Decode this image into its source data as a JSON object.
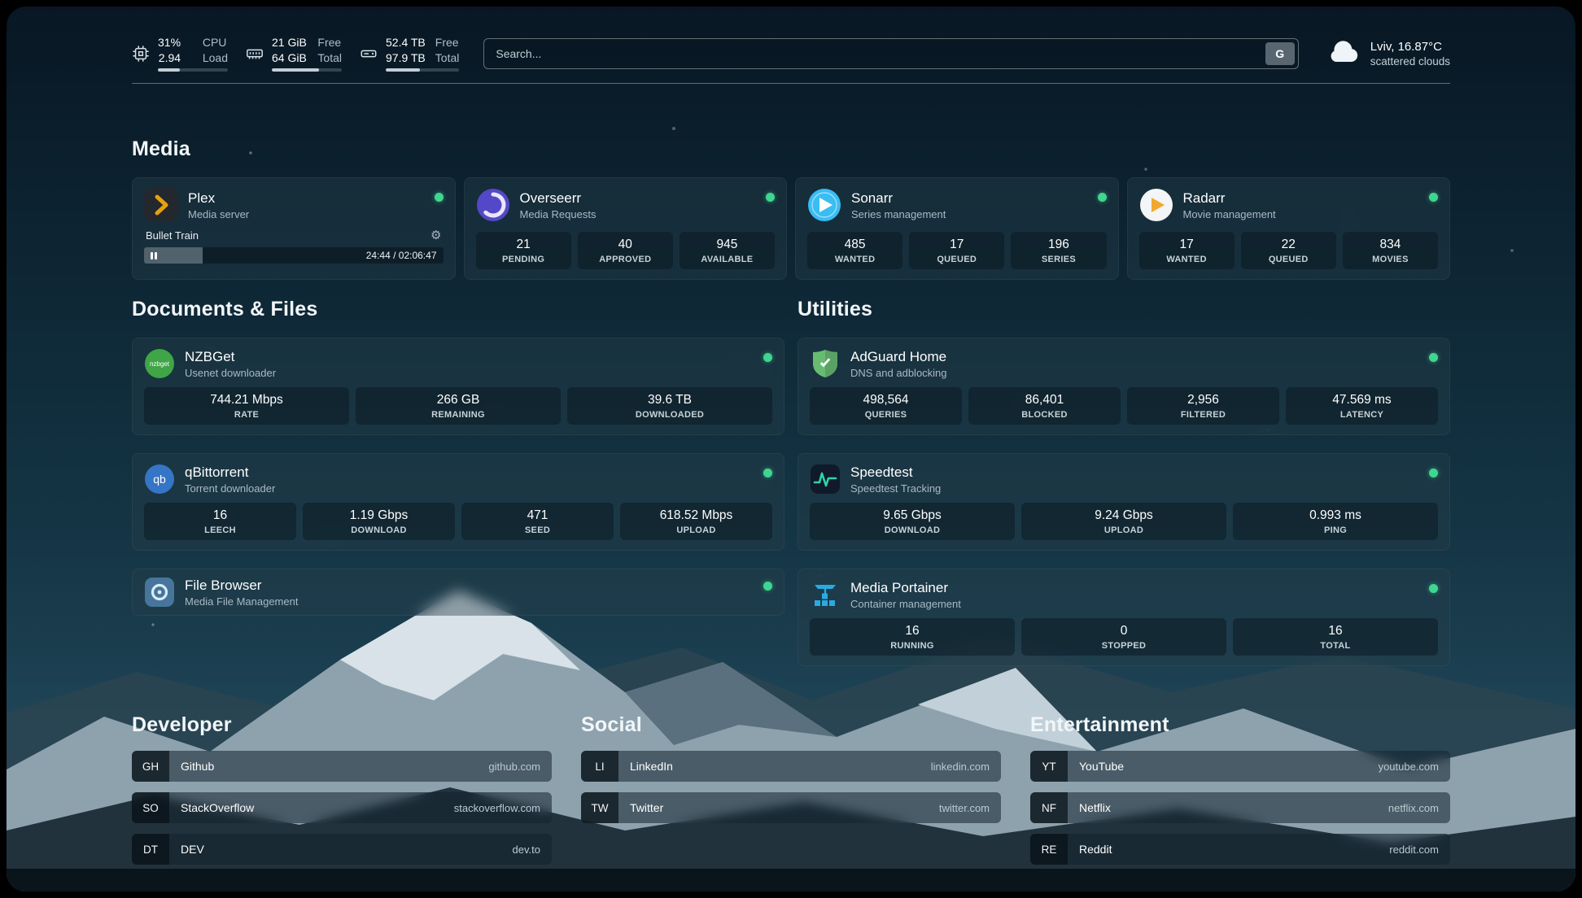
{
  "colors": {
    "status_online": "#3fd68f",
    "plex_accent": "#e5a00d",
    "progress_fill": "#c3ced6"
  },
  "header": {
    "metrics": [
      {
        "icon": "cpu-icon",
        "value_top": "31%",
        "value_bottom": "2.94",
        "label_top": "CPU",
        "label_bottom": "Load",
        "progress_percent": 31
      },
      {
        "icon": "memory-icon",
        "value_top": "21 GiB",
        "value_bottom": "64 GiB",
        "label_top": "Free",
        "label_bottom": "Total",
        "progress_percent": 67
      },
      {
        "icon": "disk-icon",
        "value_top": "52.4 TB",
        "value_bottom": "97.9 TB",
        "label_top": "Free",
        "label_bottom": "Total",
        "progress_percent": 46
      }
    ],
    "search": {
      "placeholder": "Search...",
      "provider_label": "G"
    },
    "weather": {
      "location": "Lviv, 16.87°C",
      "condition": "scattered clouds"
    }
  },
  "media": {
    "title": "Media",
    "plex": {
      "name": "Plex",
      "description": "Media server",
      "status": "online",
      "now_playing": "Bullet Train",
      "time": "24:44 / 02:06:47",
      "progress_percent": 19.5
    },
    "overseerr": {
      "name": "Overseerr",
      "description": "Media Requests",
      "status": "online",
      "stats": [
        {
          "value": "21",
          "label": "PENDING"
        },
        {
          "value": "40",
          "label": "APPROVED"
        },
        {
          "value": "945",
          "label": "AVAILABLE"
        }
      ]
    },
    "sonarr": {
      "name": "Sonarr",
      "description": "Series management",
      "status": "online",
      "stats": [
        {
          "value": "485",
          "label": "WANTED"
        },
        {
          "value": "17",
          "label": "QUEUED"
        },
        {
          "value": "196",
          "label": "SERIES"
        }
      ]
    },
    "radarr": {
      "name": "Radarr",
      "description": "Movie management",
      "status": "online",
      "stats": [
        {
          "value": "17",
          "label": "WANTED"
        },
        {
          "value": "22",
          "label": "QUEUED"
        },
        {
          "value": "834",
          "label": "MOVIES"
        }
      ]
    }
  },
  "documents": {
    "title": "Documents & Files",
    "nzbget": {
      "name": "NZBGet",
      "description": "Usenet downloader",
      "status": "online",
      "icon_text": "nzbget",
      "stats": [
        {
          "value": "744.21 Mbps",
          "label": "RATE"
        },
        {
          "value": "266 GB",
          "label": "REMAINING"
        },
        {
          "value": "39.6 TB",
          "label": "DOWNLOADED"
        }
      ]
    },
    "qbittorrent": {
      "name": "qBittorrent",
      "description": "Torrent downloader",
      "status": "online",
      "icon_text": "qb",
      "stats": [
        {
          "value": "16",
          "label": "LEECH"
        },
        {
          "value": "1.19 Gbps",
          "label": "DOWNLOAD"
        },
        {
          "value": "471",
          "label": "SEED"
        },
        {
          "value": "618.52 Mbps",
          "label": "UPLOAD"
        }
      ]
    },
    "filebrowser": {
      "name": "File Browser",
      "description": "Media File Management",
      "status": "online"
    }
  },
  "utilities": {
    "title": "Utilities",
    "adguard": {
      "name": "AdGuard Home",
      "description": "DNS and adblocking",
      "status": "online",
      "stats": [
        {
          "value": "498,564",
          "label": "QUERIES"
        },
        {
          "value": "86,401",
          "label": "BLOCKED"
        },
        {
          "value": "2,956",
          "label": "FILTERED"
        },
        {
          "value": "47.569 ms",
          "label": "LATENCY"
        }
      ]
    },
    "speedtest": {
      "name": "Speedtest",
      "description": "Speedtest Tracking",
      "status": "online",
      "stats": [
        {
          "value": "9.65 Gbps",
          "label": "DOWNLOAD"
        },
        {
          "value": "9.24 Gbps",
          "label": "UPLOAD"
        },
        {
          "value": "0.993 ms",
          "label": "PING"
        }
      ]
    },
    "portainer": {
      "name": "Media Portainer",
      "description": "Container management",
      "status": "online",
      "stats": [
        {
          "value": "16",
          "label": "RUNNING"
        },
        {
          "value": "0",
          "label": "STOPPED"
        },
        {
          "value": "16",
          "label": "TOTAL"
        }
      ]
    }
  },
  "bookmarks": {
    "developer": {
      "title": "Developer",
      "items": [
        {
          "abbr": "GH",
          "name": "Github",
          "domain": "github.com"
        },
        {
          "abbr": "SO",
          "name": "StackOverflow",
          "domain": "stackoverflow.com"
        },
        {
          "abbr": "DT",
          "name": "DEV",
          "domain": "dev.to"
        }
      ]
    },
    "social": {
      "title": "Social",
      "items": [
        {
          "abbr": "LI",
          "name": "LinkedIn",
          "domain": "linkedin.com"
        },
        {
          "abbr": "TW",
          "name": "Twitter",
          "domain": "twitter.com"
        }
      ]
    },
    "entertainment": {
      "title": "Entertainment",
      "items": [
        {
          "abbr": "YT",
          "name": "YouTube",
          "domain": "youtube.com"
        },
        {
          "abbr": "NF",
          "name": "Netflix",
          "domain": "netflix.com"
        },
        {
          "abbr": "RE",
          "name": "Reddit",
          "domain": "reddit.com"
        }
      ]
    }
  }
}
